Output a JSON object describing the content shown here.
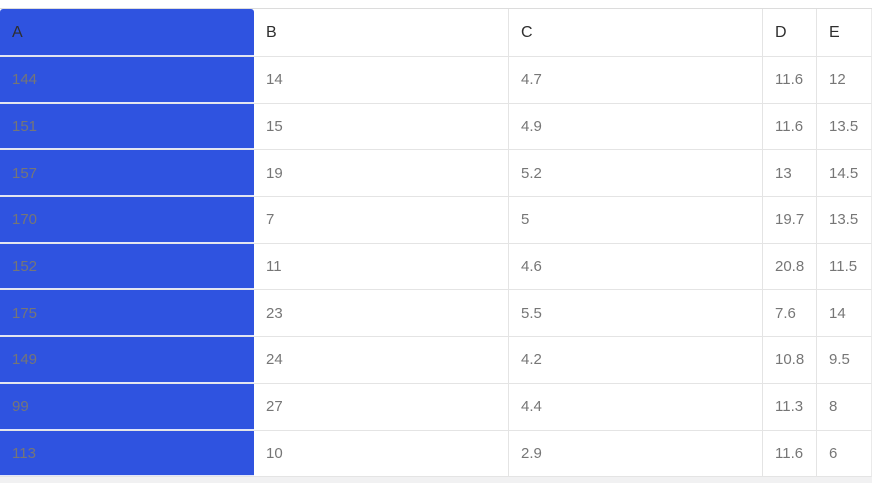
{
  "table": {
    "headers": [
      "A",
      "B",
      "C",
      "D",
      "E"
    ],
    "rows": [
      [
        "144",
        "14",
        "4.7",
        "11.6",
        "12"
      ],
      [
        "151",
        "15",
        "4.9",
        "11.6",
        "13.5"
      ],
      [
        "157",
        "19",
        "5.2",
        "13",
        "14.5"
      ],
      [
        "170",
        "7",
        "5",
        "19.7",
        "13.5"
      ],
      [
        "152",
        "11",
        "4.6",
        "20.8",
        "11.5"
      ],
      [
        "175",
        "23",
        "5.5",
        "7.6",
        "14"
      ],
      [
        "149",
        "24",
        "4.2",
        "10.8",
        "9.5"
      ],
      [
        "99",
        "27",
        "4.4",
        "11.3",
        "8"
      ],
      [
        "113",
        "10",
        "2.9",
        "11.6",
        "6"
      ]
    ],
    "selected_column": "A",
    "selected_column_index": 0
  },
  "colors": {
    "selection_blue": "#2f53e0",
    "grid_line": "#e4e4e4",
    "header_text": "#2e2e2e",
    "cell_text": "#767676",
    "selected_cell_text": "#253253"
  }
}
